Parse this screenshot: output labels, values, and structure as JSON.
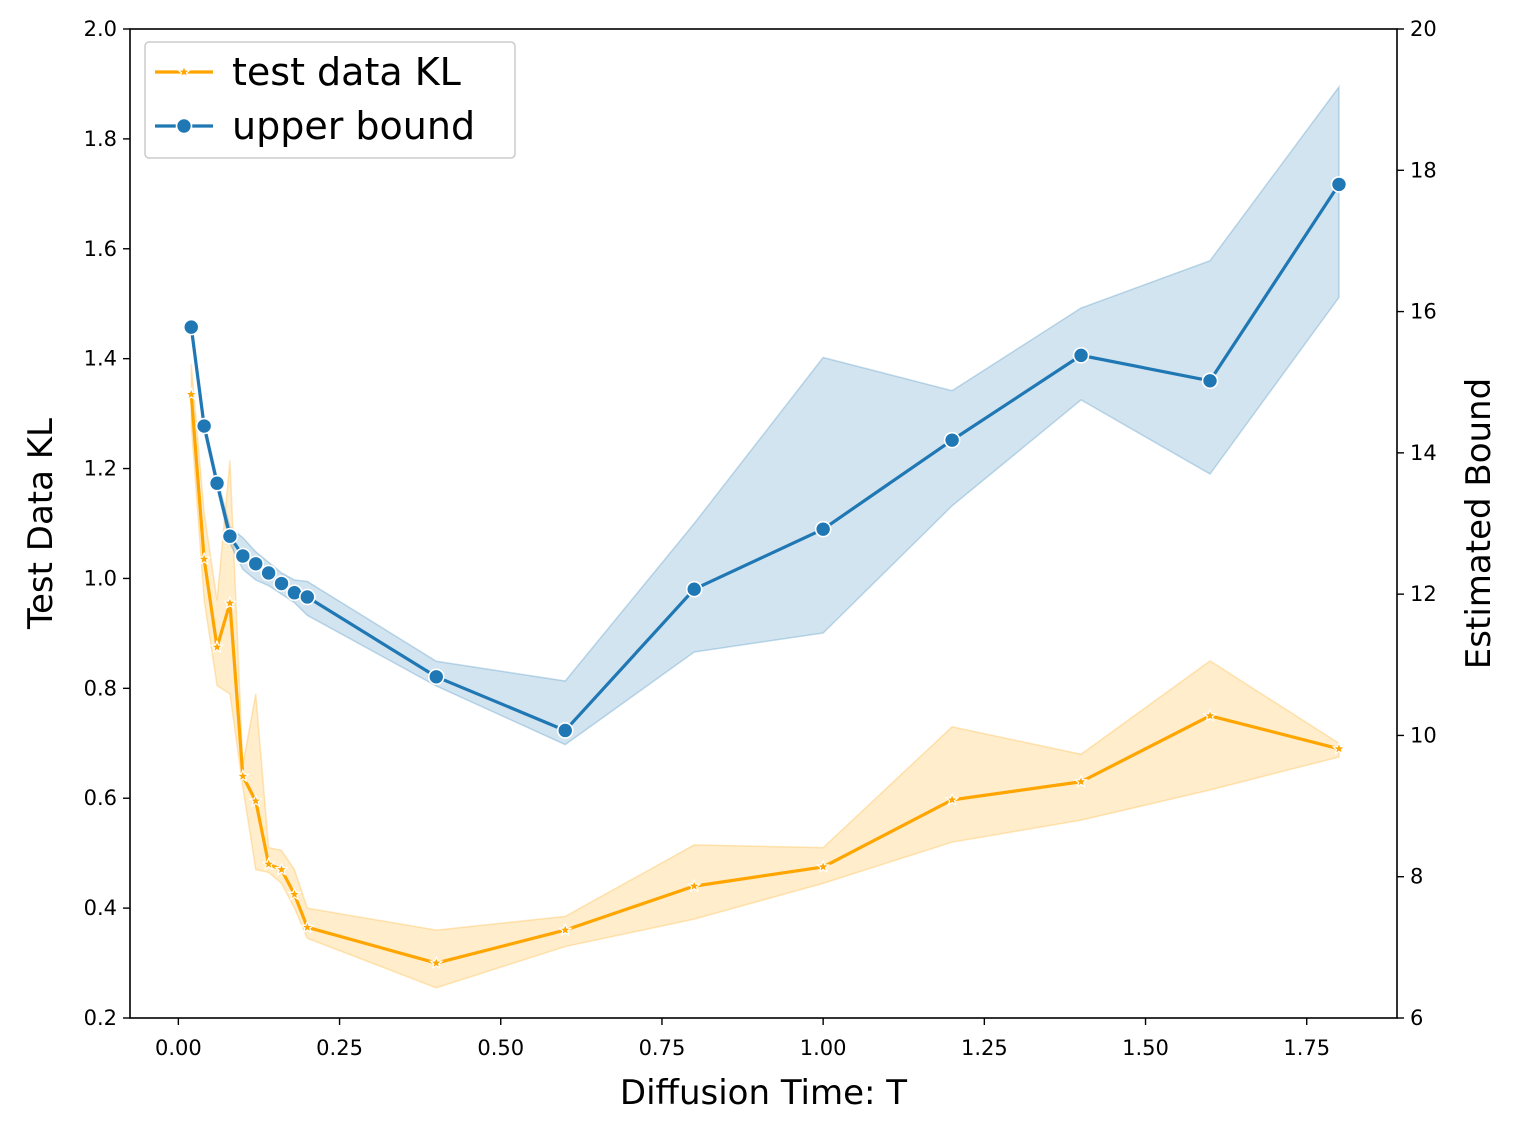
{
  "chart_data": {
    "type": "line",
    "title": "",
    "xlabel": "Diffusion Time: T",
    "ylabel_left": "Test Data KL",
    "ylabel_right": "Estimated Bound",
    "xlim": [
      -0.075,
      1.89
    ],
    "ylim_left": [
      0.2,
      2.0
    ],
    "ylim_right": [
      6,
      20
    ],
    "x_ticks": [
      0.0,
      0.25,
      0.5,
      0.75,
      1.0,
      1.25,
      1.5,
      1.75
    ],
    "x_tick_labels": [
      "0.00",
      "0.25",
      "0.50",
      "0.75",
      "1.00",
      "1.25",
      "1.50",
      "1.75"
    ],
    "y_left_ticks": [
      0.2,
      0.4,
      0.6,
      0.8,
      1.0,
      1.2,
      1.4,
      1.6,
      1.8,
      2.0
    ],
    "y_left_tick_labels": [
      "0.2",
      "0.4",
      "0.6",
      "0.8",
      "1.0",
      "1.2",
      "1.4",
      "1.6",
      "1.8",
      "2.0"
    ],
    "y_right_ticks": [
      6,
      8,
      10,
      12,
      14,
      16,
      18,
      20
    ],
    "y_right_tick_labels": [
      "6",
      "8",
      "10",
      "12",
      "14",
      "16",
      "18",
      "20"
    ],
    "legend_position": "top-left",
    "series": [
      {
        "name": "test data KL",
        "axis": "left",
        "color": "#ffa500",
        "band_color": "#ffe9c0",
        "marker": "star",
        "x": [
          0.02,
          0.04,
          0.06,
          0.08,
          0.1,
          0.12,
          0.14,
          0.16,
          0.18,
          0.2,
          0.4,
          0.6,
          0.8,
          1.0,
          1.2,
          1.4,
          1.6,
          1.8
        ],
        "values": [
          1.335,
          1.035,
          0.875,
          0.955,
          0.64,
          0.595,
          0.48,
          0.47,
          0.425,
          0.365,
          0.3,
          0.36,
          0.44,
          0.475,
          0.597,
          0.63,
          0.75,
          0.69
        ],
        "lower": [
          1.28,
          0.96,
          0.805,
          0.79,
          0.62,
          0.47,
          0.465,
          0.445,
          0.4,
          0.345,
          0.255,
          0.33,
          0.38,
          0.445,
          0.52,
          0.56,
          0.615,
          0.675
        ],
        "upper": [
          1.39,
          1.12,
          0.96,
          1.215,
          0.66,
          0.79,
          0.51,
          0.505,
          0.47,
          0.4,
          0.36,
          0.385,
          0.515,
          0.51,
          0.73,
          0.68,
          0.85,
          0.7
        ]
      },
      {
        "name": "upper bound",
        "axis": "right",
        "color": "#1f77b4",
        "band_color": "#cfe0ee",
        "marker": "circle",
        "x": [
          0.02,
          0.04,
          0.06,
          0.08,
          0.1,
          0.12,
          0.14,
          0.16,
          0.18,
          0.2,
          0.4,
          0.6,
          0.8,
          1.0,
          1.2,
          1.4,
          1.6,
          1.8
        ],
        "values": [
          15.78,
          14.38,
          13.57,
          12.82,
          12.54,
          12.43,
          12.3,
          12.15,
          12.02,
          11.96,
          10.83,
          10.07,
          12.07,
          12.92,
          14.18,
          15.38,
          15.02,
          17.8
        ],
        "lower": [
          15.7,
          14.3,
          13.5,
          12.72,
          12.35,
          12.2,
          12.12,
          12.0,
          11.88,
          11.7,
          10.7,
          9.87,
          11.18,
          11.45,
          13.25,
          14.75,
          13.7,
          16.2
        ],
        "upper": [
          15.88,
          14.45,
          13.65,
          12.95,
          12.8,
          12.6,
          12.45,
          12.3,
          12.2,
          12.18,
          11.05,
          10.77,
          13.0,
          15.35,
          14.88,
          16.05,
          16.72,
          19.18
        ]
      }
    ]
  }
}
